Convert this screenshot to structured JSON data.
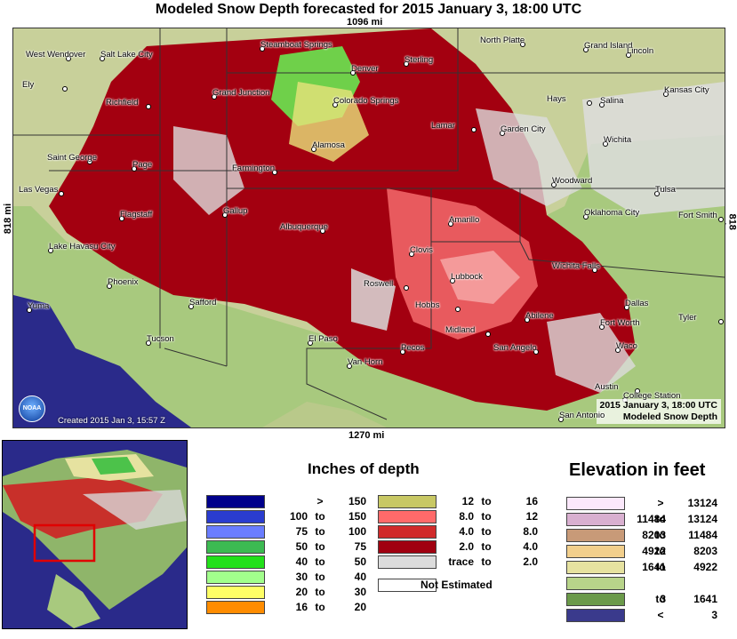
{
  "title": "Modeled Snow Depth forecasted for 2015 January 3, 18:00 UTC",
  "scale": {
    "top": "1096 mi",
    "bottom": "1270 mi",
    "left": "818 mi",
    "right": "818 mi"
  },
  "map": {
    "footer_date": "2015 January 3, 18:00 UTC",
    "footer_product": "Modeled Snow Depth",
    "created": "Created 2015 Jan 3, 15:57 Z",
    "logo": "NOAA",
    "colors": {
      "snow_dark": "#a30010",
      "snow_mid": "#d92030",
      "snow_light": "#e85a5e",
      "terrain_low": "#b9d48a",
      "terrain_mid": "#8fb56a",
      "water": "#2a2a8a",
      "trace": "#dcdcdc"
    },
    "cities": [
      {
        "name": "West Wendover"
      },
      {
        "name": "Salt Lake City"
      },
      {
        "name": "Steamboat Springs"
      },
      {
        "name": "North Platte"
      },
      {
        "name": "Grand Island"
      },
      {
        "name": "Lincoln"
      },
      {
        "name": "Ely"
      },
      {
        "name": "Denver"
      },
      {
        "name": "Sterling"
      },
      {
        "name": "Richfield"
      },
      {
        "name": "Grand Junction"
      },
      {
        "name": "Colorado Springs"
      },
      {
        "name": "Hays"
      },
      {
        "name": "Salina"
      },
      {
        "name": "Kansas City"
      },
      {
        "name": "Lamar"
      },
      {
        "name": "Garden City"
      },
      {
        "name": "Wichita"
      },
      {
        "name": "Saint George"
      },
      {
        "name": "Alamosa"
      },
      {
        "name": "Page"
      },
      {
        "name": "Farmington"
      },
      {
        "name": "Woodward"
      },
      {
        "name": "Tulsa"
      },
      {
        "name": "Las Vegas"
      },
      {
        "name": "Flagstaff"
      },
      {
        "name": "Gallup"
      },
      {
        "name": "Albuquerque"
      },
      {
        "name": "Amarillo"
      },
      {
        "name": "Oklahoma City"
      },
      {
        "name": "Fort Smith"
      },
      {
        "name": "Lake Havasu City"
      },
      {
        "name": "Clovis"
      },
      {
        "name": "Wichita Falls"
      },
      {
        "name": "Phoenix"
      },
      {
        "name": "Lubbock"
      },
      {
        "name": "Roswell"
      },
      {
        "name": "Safford"
      },
      {
        "name": "Yuma"
      },
      {
        "name": "Hobbs"
      },
      {
        "name": "Dallas"
      },
      {
        "name": "Abilene"
      },
      {
        "name": "Tyler"
      },
      {
        "name": "Fort Worth"
      },
      {
        "name": "Tucson"
      },
      {
        "name": "Midland"
      },
      {
        "name": "El Paso"
      },
      {
        "name": "Pecos"
      },
      {
        "name": "San Angelo"
      },
      {
        "name": "Waco"
      },
      {
        "name": "Van Horn"
      },
      {
        "name": "Austin"
      },
      {
        "name": "College Station"
      },
      {
        "name": "San Antonio"
      }
    ]
  },
  "depth_legend": {
    "title": "Inches of depth",
    "left": [
      {
        "lo": "",
        "to": ">",
        "hi": "150",
        "color": "#00008b"
      },
      {
        "lo": "100",
        "to": "to",
        "hi": "150",
        "color": "#2a3ccf"
      },
      {
        "lo": "75",
        "to": "to",
        "hi": "100",
        "color": "#6a7dff"
      },
      {
        "lo": "50",
        "to": "to",
        "hi": "75",
        "color": "#3cba52"
      },
      {
        "lo": "40",
        "to": "to",
        "hi": "50",
        "color": "#22e01a"
      },
      {
        "lo": "30",
        "to": "to",
        "hi": "40",
        "color": "#a2ff8c"
      },
      {
        "lo": "20",
        "to": "to",
        "hi": "30",
        "color": "#ffff66"
      },
      {
        "lo": "16",
        "to": "to",
        "hi": "20",
        "color": "#ff8c00"
      }
    ],
    "right": [
      {
        "lo": "12",
        "to": "to",
        "hi": "16",
        "color": "#c8c864"
      },
      {
        "lo": "8.0",
        "to": "to",
        "hi": "12",
        "color": "#ff6a6a"
      },
      {
        "lo": "4.0",
        "to": "to",
        "hi": "8.0",
        "color": "#d02a2a"
      },
      {
        "lo": "2.0",
        "to": "to",
        "hi": "4.0",
        "color": "#a00010"
      },
      {
        "lo": "trace",
        "to": "to",
        "hi": "2.0",
        "color": "#dcdcdc"
      }
    ],
    "not_estimated": "Not Estimated"
  },
  "elevation_legend": {
    "title": "Elevation in feet",
    "rows": [
      {
        "lo": "",
        "to": ">",
        "hi": "13124",
        "color": "#fbe8fb"
      },
      {
        "lo": "11484",
        "to": "to",
        "hi": "13124",
        "color": "#d9b0d0"
      },
      {
        "lo": "8203",
        "to": "to",
        "hi": "11484",
        "color": "#c89a78"
      },
      {
        "lo": "4922",
        "to": "to",
        "hi": "8203",
        "color": "#f2cf8c"
      },
      {
        "lo": "1641",
        "to": "to",
        "hi": "4922",
        "color": "#e6e2a0"
      },
      {
        "lo": "",
        "to": "",
        "hi": "",
        "color": "#b8d48a"
      },
      {
        "lo": "3",
        "to": "to",
        "hi": "1641",
        "color": "#6b9a4a"
      },
      {
        "lo": "",
        "to": "<",
        "hi": "3",
        "color": "#3a3a8c"
      }
    ]
  }
}
